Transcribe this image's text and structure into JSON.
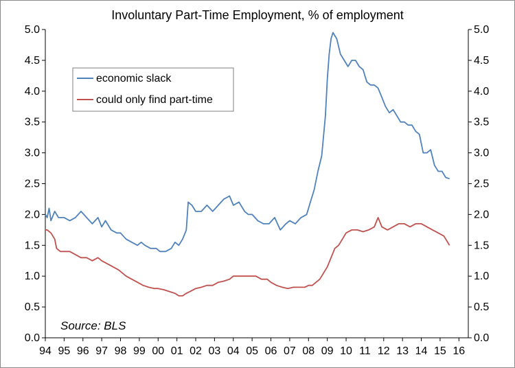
{
  "chart_data": {
    "type": "line",
    "title": "Involuntary Part-Time Employment, % of employment",
    "source": "Source: BLS",
    "x_tick_labels": [
      "94",
      "95",
      "96",
      "97",
      "98",
      "99",
      "00",
      "01",
      "02",
      "03",
      "04",
      "05",
      "06",
      "07",
      "08",
      "09",
      "10",
      "11",
      "12",
      "13",
      "14",
      "15",
      "16"
    ],
    "xlim": [
      1994,
      2016.5
    ],
    "ylim": [
      0,
      5
    ],
    "y_ticks": [
      "0.0",
      "0.5",
      "1.0",
      "1.5",
      "2.0",
      "2.5",
      "3.0",
      "3.5",
      "4.0",
      "4.5",
      "5.0"
    ],
    "legend_position": "top-left",
    "series": [
      {
        "name": "economic slack",
        "color": "#4f81bd",
        "x": [
          1994.0,
          1994.1,
          1994.2,
          1994.3,
          1994.5,
          1994.7,
          1995.0,
          1995.3,
          1995.6,
          1995.9,
          1996.2,
          1996.5,
          1996.8,
          1997.0,
          1997.2,
          1997.5,
          1997.8,
          1998.0,
          1998.3,
          1998.6,
          1998.9,
          1999.1,
          1999.3,
          1999.6,
          1999.9,
          2000.1,
          2000.4,
          2000.7,
          2000.9,
          2001.1,
          2001.3,
          2001.5,
          2001.6,
          2001.8,
          2002.0,
          2002.3,
          2002.6,
          2002.9,
          2003.2,
          2003.5,
          2003.8,
          2004.0,
          2004.3,
          2004.6,
          2004.8,
          2005.0,
          2005.3,
          2005.6,
          2005.9,
          2006.2,
          2006.5,
          2006.8,
          2007.0,
          2007.3,
          2007.6,
          2007.9,
          2008.1,
          2008.3,
          2008.5,
          2008.7,
          2008.9,
          2009.0,
          2009.1,
          2009.2,
          2009.3,
          2009.5,
          2009.7,
          2009.9,
          2010.1,
          2010.3,
          2010.5,
          2010.7,
          2010.9,
          2011.1,
          2011.3,
          2011.5,
          2011.7,
          2011.9,
          2012.1,
          2012.3,
          2012.5,
          2012.7,
          2012.9,
          2013.1,
          2013.3,
          2013.5,
          2013.7,
          2013.9,
          2014.1,
          2014.3,
          2014.5,
          2014.7,
          2014.9,
          2015.1,
          2015.3,
          2015.5
        ],
        "y": [
          2.0,
          1.95,
          2.1,
          1.9,
          2.05,
          1.95,
          1.95,
          1.9,
          1.95,
          2.05,
          1.95,
          1.85,
          1.95,
          1.8,
          1.9,
          1.75,
          1.7,
          1.7,
          1.6,
          1.55,
          1.5,
          1.55,
          1.5,
          1.45,
          1.45,
          1.4,
          1.4,
          1.45,
          1.55,
          1.5,
          1.6,
          1.75,
          2.2,
          2.15,
          2.05,
          2.05,
          2.15,
          2.05,
          2.15,
          2.25,
          2.3,
          2.15,
          2.2,
          2.05,
          2.0,
          2.0,
          1.9,
          1.85,
          1.85,
          1.95,
          1.75,
          1.85,
          1.9,
          1.85,
          1.95,
          2.0,
          2.2,
          2.4,
          2.7,
          2.95,
          3.6,
          4.2,
          4.6,
          4.85,
          4.95,
          4.85,
          4.6,
          4.5,
          4.4,
          4.5,
          4.5,
          4.4,
          4.35,
          4.15,
          4.1,
          4.1,
          4.05,
          3.9,
          3.75,
          3.65,
          3.7,
          3.6,
          3.5,
          3.5,
          3.45,
          3.45,
          3.35,
          3.3,
          3.0,
          3.0,
          3.05,
          2.8,
          2.7,
          2.7,
          2.6,
          2.58
        ]
      },
      {
        "name": "could only find part-time",
        "color": "#c0504d",
        "x": [
          1994.0,
          1994.1,
          1994.3,
          1994.5,
          1994.6,
          1994.8,
          1995.0,
          1995.3,
          1995.6,
          1995.9,
          1996.2,
          1996.5,
          1996.8,
          1997.0,
          1997.3,
          1997.6,
          1997.9,
          1998.1,
          1998.3,
          1998.6,
          1998.9,
          1999.2,
          1999.5,
          1999.8,
          2000.0,
          2000.3,
          2000.6,
          2000.9,
          2001.1,
          2001.3,
          2001.5,
          2001.7,
          2002.0,
          2002.3,
          2002.6,
          2002.9,
          2003.2,
          2003.5,
          2003.8,
          2004.0,
          2004.3,
          2004.6,
          2004.9,
          2005.2,
          2005.5,
          2005.8,
          2006.0,
          2006.3,
          2006.6,
          2006.9,
          2007.2,
          2007.5,
          2007.8,
          2008.0,
          2008.2,
          2008.4,
          2008.6,
          2008.8,
          2009.0,
          2009.2,
          2009.4,
          2009.6,
          2009.8,
          2010.0,
          2010.3,
          2010.6,
          2010.9,
          2011.2,
          2011.5,
          2011.7,
          2011.9,
          2012.2,
          2012.5,
          2012.8,
          2013.1,
          2013.4,
          2013.7,
          2014.0,
          2014.3,
          2014.6,
          2014.9,
          2015.2,
          2015.4,
          2015.5
        ],
        "y": [
          1.75,
          1.75,
          1.7,
          1.6,
          1.45,
          1.4,
          1.4,
          1.4,
          1.35,
          1.3,
          1.3,
          1.25,
          1.3,
          1.25,
          1.2,
          1.15,
          1.1,
          1.05,
          1.0,
          0.95,
          0.9,
          0.85,
          0.82,
          0.8,
          0.8,
          0.78,
          0.75,
          0.72,
          0.68,
          0.68,
          0.72,
          0.75,
          0.8,
          0.82,
          0.85,
          0.85,
          0.9,
          0.92,
          0.95,
          1.0,
          1.0,
          1.0,
          1.0,
          1.0,
          0.95,
          0.95,
          0.9,
          0.85,
          0.82,
          0.8,
          0.82,
          0.82,
          0.82,
          0.85,
          0.85,
          0.9,
          0.95,
          1.05,
          1.15,
          1.3,
          1.45,
          1.5,
          1.6,
          1.7,
          1.75,
          1.75,
          1.72,
          1.75,
          1.8,
          1.95,
          1.8,
          1.75,
          1.8,
          1.85,
          1.85,
          1.8,
          1.85,
          1.85,
          1.8,
          1.75,
          1.7,
          1.65,
          1.55,
          1.5
        ]
      }
    ]
  }
}
